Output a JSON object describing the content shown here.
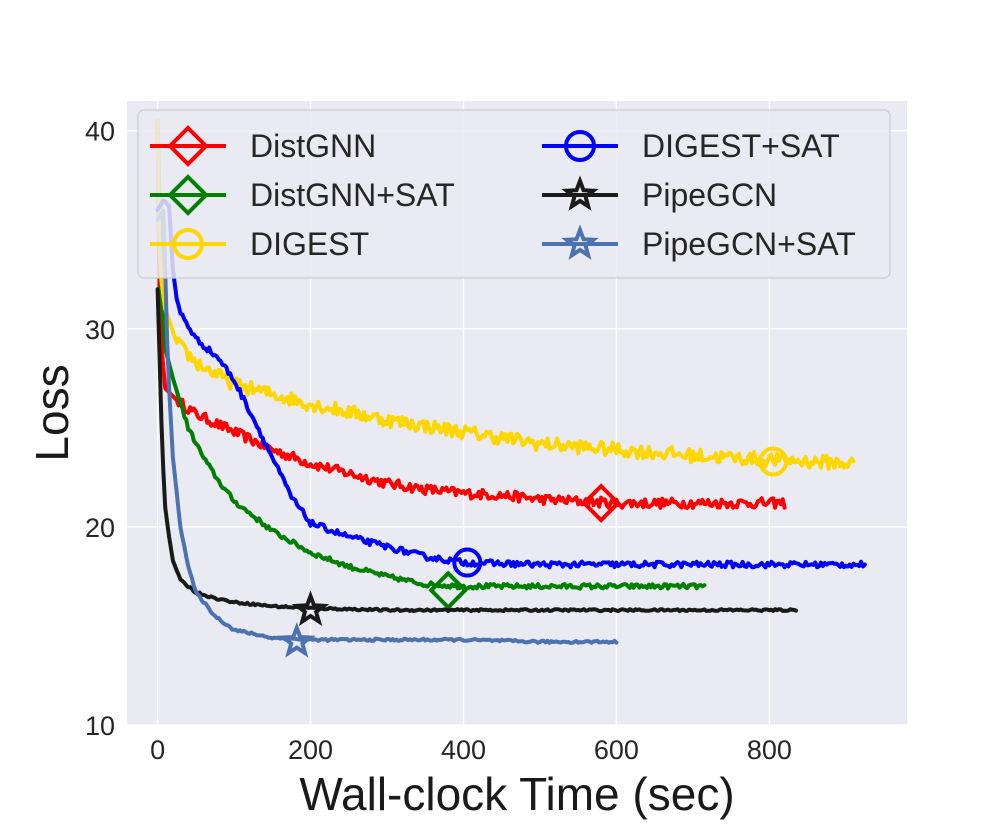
{
  "chart_data": {
    "type": "line",
    "title": "",
    "xlabel": "Wall-clock Time (sec)",
    "ylabel": "Loss",
    "xlim": [
      -40,
      980
    ],
    "ylim": [
      10,
      41.5
    ],
    "xticks": [
      0,
      200,
      400,
      600,
      800
    ],
    "yticks": [
      10,
      20,
      30,
      40
    ],
    "grid": true,
    "legend_position": "top",
    "series": [
      {
        "name": "DistGNN",
        "color": "#ff0000",
        "marker": "diamond",
        "marker_at": [
          580,
          21.2
        ],
        "noise": 0.25,
        "x": [
          0,
          3,
          10,
          25,
          50,
          100,
          150,
          200,
          250,
          300,
          350,
          400,
          450,
          500,
          550,
          600,
          650,
          700,
          750,
          820
        ],
        "y": [
          40.5,
          30,
          27,
          26.4,
          25.7,
          24.8,
          23.9,
          23.2,
          22.7,
          22.2,
          21.9,
          21.7,
          21.6,
          21.4,
          21.3,
          21.2,
          21.2,
          21.2,
          21.2,
          21.2
        ]
      },
      {
        "name": "DistGNN+SAT",
        "color": "#008000",
        "marker": "diamond",
        "marker_at": [
          380,
          16.8
        ],
        "noise": 0.12,
        "x": [
          0,
          5,
          10,
          20,
          40,
          60,
          80,
          100,
          150,
          200,
          250,
          300,
          350,
          400,
          450,
          500,
          600,
          715
        ],
        "y": [
          40.5,
          32,
          29,
          27.5,
          25,
          23.5,
          22.3,
          21.3,
          19.8,
          18.7,
          18.0,
          17.5,
          17.1,
          17.0,
          17.0,
          17.0,
          17.0,
          17.0
        ]
      },
      {
        "name": "DIGEST",
        "color": "#ffd700",
        "marker": "circle",
        "marker_at": [
          805,
          23.3
        ],
        "noise": 0.35,
        "x": [
          0,
          3,
          10,
          25,
          50,
          100,
          150,
          200,
          250,
          300,
          400,
          500,
          600,
          700,
          800,
          910
        ],
        "y": [
          40.5,
          33,
          31,
          29.3,
          28.3,
          27.2,
          26.7,
          26.2,
          25.8,
          25.4,
          24.8,
          24.2,
          23.9,
          23.6,
          23.4,
          23.2
        ]
      },
      {
        "name": "DIGEST+SAT",
        "color": "#0000ff",
        "marker": "circle",
        "marker_at": [
          405,
          18.2
        ],
        "noise": 0.15,
        "x": [
          0,
          8,
          15,
          20,
          25,
          30,
          50,
          80,
          100,
          125,
          150,
          175,
          200,
          250,
          300,
          350,
          400,
          500,
          600,
          700,
          800,
          925
        ],
        "y": [
          36,
          36.5,
          36.2,
          33,
          31.5,
          30.8,
          29.5,
          28.5,
          27.4,
          25.5,
          23.5,
          21.5,
          20.2,
          19.5,
          19.0,
          18.5,
          18.2,
          18.1,
          18.1,
          18.1,
          18.1,
          18.1
        ]
      },
      {
        "name": "PipeGCN",
        "color": "#1a1a1a",
        "marker": "star",
        "marker_at": [
          200,
          15.8
        ],
        "noise": 0.05,
        "x": [
          0,
          3,
          6,
          10,
          15,
          20,
          30,
          50,
          75,
          100,
          150,
          200,
          300,
          400,
          500,
          600,
          700,
          835
        ],
        "y": [
          32,
          28,
          24,
          21,
          19.5,
          18.3,
          17.3,
          16.7,
          16.4,
          16.2,
          16.0,
          15.9,
          15.8,
          15.8,
          15.8,
          15.8,
          15.8,
          15.8
        ]
      },
      {
        "name": "PipeGCN+SAT",
        "color": "#4c72b0",
        "marker": "star",
        "marker_at": [
          182,
          14.2
        ],
        "noise": 0.06,
        "x": [
          0,
          8,
          12,
          15,
          20,
          30,
          40,
          50,
          75,
          100,
          150,
          200,
          300,
          400,
          500,
          600
        ],
        "y": [
          35.5,
          36,
          30,
          27,
          23.5,
          20,
          18,
          16.7,
          15.5,
          14.8,
          14.4,
          14.3,
          14.3,
          14.3,
          14.2,
          14.2
        ]
      }
    ]
  },
  "legend_columns": 2
}
